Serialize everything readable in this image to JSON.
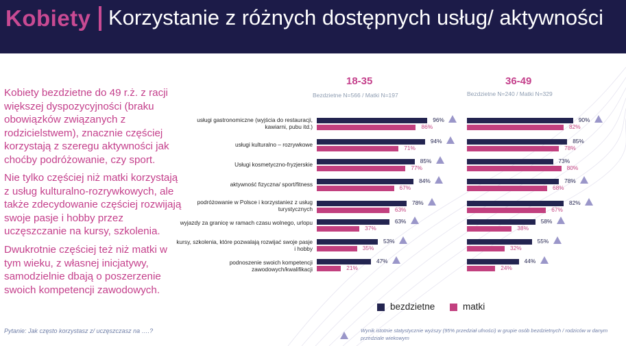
{
  "header": {
    "brand": "Kobiety",
    "title": "Korzystanie z różnych dostępnych usług/ aktywności"
  },
  "text": {
    "p1": "Kobiety bezdzietne do 49 r.ż. z racji większej dyspozycyjności (braku obowiązków związanych z rodzicielstwem), znacznie częściej korzystają z szeregu aktywności jak choćby podróżowanie, czy sport.",
    "p2": "Nie tylko częściej niż matki korzystają z usług kulturalno-rozrywkowych, ale także zdecydowanie częściej rozwijają swoje pasje i hobby przez uczęszczanie na kursy, szkolenia.",
    "p3": "Dwukrotnie częściej też niż matki w tym wieku, z własnej inicjatywy, samodzielnie dbają o poszerzenie swoich kompetencji zawodowych."
  },
  "legend": {
    "bezdzietne": "bezdzietne",
    "matki": "matki"
  },
  "footer": {
    "question": "Pytanie: Jak często korzystasz z/ uczęszczasz na ….?",
    "note": "Wynik istotnie statystycznie wyższy (95% przedział ufności) w grupie osób bezdzietnych / rodziców w danym przedziale wiekowym"
  },
  "colors": {
    "bezdzietne": "#232450",
    "matki": "#c2407f",
    "triangle": "#9a96c9",
    "header": "#1c1b48"
  },
  "chart_data": {
    "type": "bar",
    "orientation": "horizontal",
    "categories": [
      "usługi gastronomiczne (wyjścia do restauracji, kawiarni, pubu itd.)",
      "usługi kulturalno – rozrywkowe",
      "Usługi kosmetyczno-fryzjerskie",
      "aktywność fizyczna/ sport/fitness",
      "podróżowanie w Polsce i korzystaniez z usług turystycznych",
      "wyjazdy za granicę w ramach czasu wolnego, urlopu",
      "kursy, szkolenia, które pozwalają rozwijać swoje pasje i hobby",
      "podnoszenie swoich kompetencji zawodowych/kwalifikacji"
    ],
    "panels": [
      {
        "title": "18-35",
        "subtitle": "Bezdzietne N=566 / Matki N=197",
        "series": [
          {
            "name": "bezdzietne",
            "values": [
              96,
              94,
              85,
              84,
              78,
              63,
              53,
              47
            ]
          },
          {
            "name": "matki",
            "values": [
              86,
              71,
              77,
              67,
              63,
              37,
              35,
              21
            ]
          }
        ],
        "significant_higher": [
          "bezdzietne",
          "bezdzietne",
          "bezdzietne",
          "bezdzietne",
          "bezdzietne",
          "bezdzietne",
          "bezdzietne",
          "bezdzietne"
        ]
      },
      {
        "title": "36-49",
        "subtitle": "Bezdzietne N=240 / Matki N=329",
        "series": [
          {
            "name": "bezdzietne",
            "values": [
              90,
              85,
              73,
              78,
              82,
              58,
              55,
              44
            ]
          },
          {
            "name": "matki",
            "values": [
              82,
              78,
              80,
              68,
              67,
              38,
              32,
              24
            ]
          }
        ],
        "significant_higher": [
          "bezdzietne",
          "",
          "",
          "bezdzietne",
          "bezdzietne",
          "bezdzietne",
          "bezdzietne",
          "bezdzietne"
        ]
      }
    ],
    "unit": "%",
    "legend": [
      "bezdzietne",
      "matki"
    ],
    "legend_position": "bottom-right"
  }
}
